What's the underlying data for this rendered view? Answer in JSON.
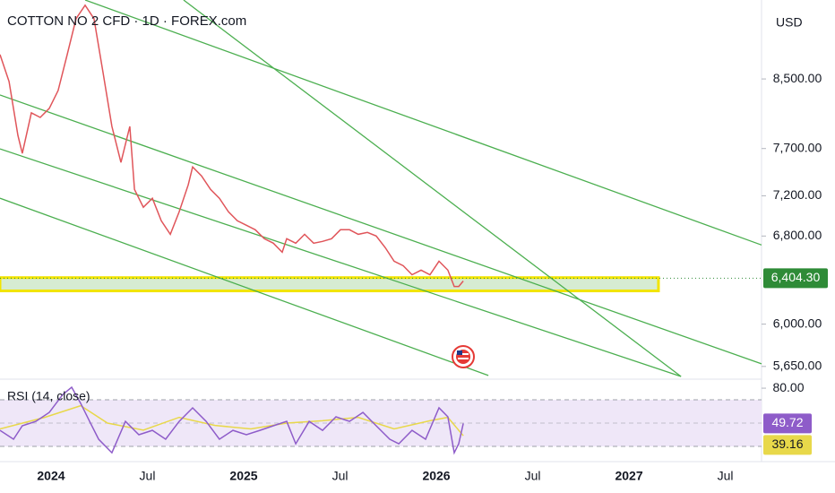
{
  "chart_data": [
    {
      "type": "line",
      "title": "COTTON NO 2 CFD · 1D · FOREX.com",
      "currency": "USD",
      "log_scale": true,
      "color": "#e0555a",
      "x": [
        2023.735,
        2023.782,
        2023.828,
        2023.851,
        2023.898,
        2023.944,
        2023.991,
        2024.037,
        2024.084,
        2024.13,
        2024.177,
        2024.223,
        2024.27,
        2024.316,
        2024.363,
        2024.409,
        2024.433,
        2024.479,
        2024.526,
        2024.572,
        2024.619,
        2024.665,
        2024.712,
        2024.735,
        2024.781,
        2024.828,
        2024.874,
        2024.921,
        2024.967,
        2025.014,
        2025.06,
        2025.107,
        2025.154,
        2025.2,
        2025.223,
        2025.27,
        2025.316,
        2025.363,
        2025.409,
        2025.456,
        2025.502,
        2025.549,
        2025.595,
        2025.642,
        2025.688,
        2025.735,
        2025.781,
        2025.828,
        2025.874,
        2025.921,
        2025.967,
        2026.014,
        2026.06,
        2026.093,
        2026.116,
        2026.14
      ],
      "values": [
        8799,
        8470,
        7845,
        7647,
        8100,
        8048,
        8152,
        8362,
        8799,
        9260,
        9439,
        9260,
        8578,
        7946,
        7550,
        7946,
        7266,
        7084,
        7175,
        6949,
        6817,
        7038,
        7313,
        7502,
        7407,
        7266,
        7175,
        7038,
        6949,
        6905,
        6861,
        6774,
        6731,
        6645,
        6774,
        6731,
        6817,
        6731,
        6748,
        6774,
        6861,
        6861,
        6817,
        6835,
        6800,
        6688,
        6561,
        6519,
        6436,
        6478,
        6436,
        6561,
        6478,
        6330,
        6330,
        6379
      ],
      "xlim": [
        2023.735,
        2027.688
      ],
      "xticks": [
        {
          "value": 2024.0,
          "label": "2024"
        },
        {
          "value": 2024.5,
          "label": "Jul"
        },
        {
          "value": 2025.0,
          "label": "2025"
        },
        {
          "value": 2025.5,
          "label": "Jul"
        },
        {
          "value": 2026.0,
          "label": "2026"
        },
        {
          "value": 2026.5,
          "label": "Jul"
        },
        {
          "value": 2027.0,
          "label": "2027"
        },
        {
          "value": 2027.5,
          "label": "Jul"
        }
      ],
      "ylim": [
        5570,
        9509
      ],
      "yticks": [
        {
          "value": 8500,
          "label": "8,500.00"
        },
        {
          "value": 7700,
          "label": "7,700.00"
        },
        {
          "value": 7200,
          "label": "7,200.00"
        },
        {
          "value": 6800,
          "label": "6,800.00"
        },
        {
          "value": 6000,
          "label": "6,000.00"
        },
        {
          "value": 5650,
          "label": "5,650.00"
        }
      ],
      "trendline_color": "#4caf50",
      "trendlines": [
        [
          2024.177,
          9509,
          2027.688,
          6714
        ],
        [
          2024.688,
          9509,
          2027.27,
          5570
        ],
        [
          2023.735,
          8309,
          2027.688,
          5671
        ],
        [
          2023.735,
          7696,
          2027.27,
          5570
        ],
        [
          2023.735,
          7175,
          2026.27,
          5578
        ]
      ],
      "zone": {
        "x": [
          2023.735,
          2027.153
        ],
        "y": [
          6290,
          6410
        ],
        "fill": "#d6ecd2",
        "stroke": "#f2e400"
      },
      "last_price": {
        "value": 6404.3,
        "label": "6,404.30",
        "color": "#2e8b37"
      }
    },
    {
      "type": "line",
      "title": "RSI (14, close)",
      "color": "#8e5cc9",
      "x": [
        2023.735,
        2023.805,
        2023.851,
        2023.921,
        2023.991,
        2024.061,
        2024.107,
        2024.154,
        2024.2,
        2024.247,
        2024.316,
        2024.386,
        2024.456,
        2024.526,
        2024.595,
        2024.665,
        2024.735,
        2024.805,
        2024.874,
        2024.944,
        2025.014,
        2025.084,
        2025.154,
        2025.223,
        2025.27,
        2025.34,
        2025.409,
        2025.479,
        2025.549,
        2025.619,
        2025.688,
        2025.758,
        2025.805,
        2025.874,
        2025.944,
        2026.014,
        2026.06,
        2026.093,
        2026.116,
        2026.14
      ],
      "values": [
        43.8,
        36.2,
        47.7,
        51.5,
        59.2,
        74.6,
        80.8,
        66.9,
        51.5,
        36.2,
        24.6,
        51.5,
        40,
        43.8,
        36.2,
        51.5,
        63.1,
        51.5,
        36.2,
        43.8,
        40,
        43.8,
        47.7,
        51.5,
        32.3,
        51.5,
        43.8,
        55.4,
        51.5,
        59.2,
        47.7,
        36.2,
        32.3,
        43.8,
        36.2,
        63.1,
        55.4,
        24.6,
        32.3,
        49.72
      ],
      "ma": {
        "color": "#e8d84a",
        "x": [
          2023.735,
          2023.967,
          2024.154,
          2024.293,
          2024.479,
          2024.665,
          2024.851,
          2025.037,
          2025.223,
          2025.409,
          2025.595,
          2025.781,
          2025.967,
          2026.06,
          2026.14
        ],
        "values": [
          45,
          55,
          65,
          50,
          44,
          55,
          48,
          45,
          50,
          52,
          55,
          45,
          52,
          55,
          39.16
        ]
      },
      "ylim": [
        20.8,
        86.2
      ],
      "yticks": [
        {
          "value": 80,
          "label": "80.00"
        }
      ],
      "bands": [
        70,
        50,
        30
      ],
      "band_fill": "#efe7f8",
      "rsi_last": {
        "value": 49.72,
        "label": "49.72"
      },
      "ma_last": {
        "value": 39.16,
        "label": "39.16"
      }
    }
  ]
}
